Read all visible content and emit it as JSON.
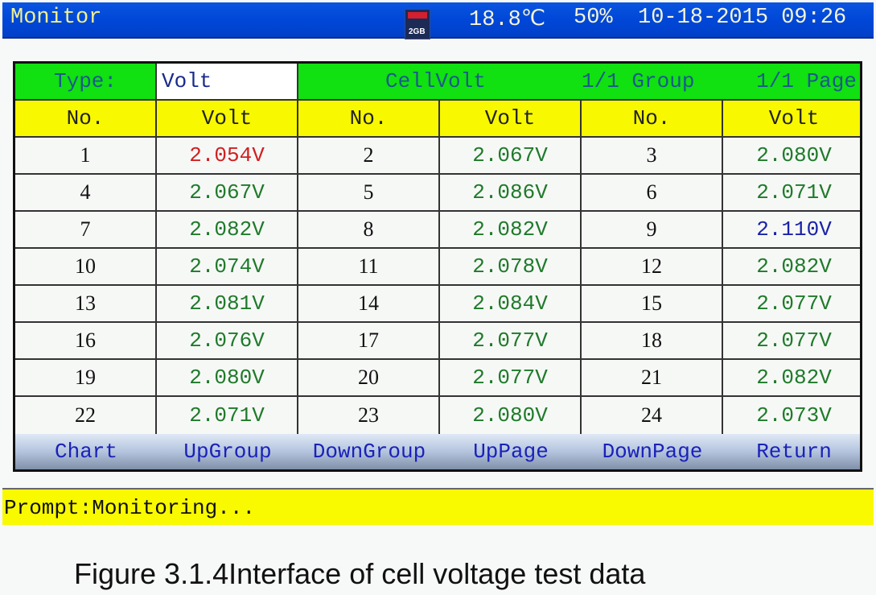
{
  "topbar": {
    "title": "Monitor",
    "sd_card_capacity": "2GB",
    "temperature": "18.8℃",
    "humidity": "50%",
    "datetime": "10-18-2015 09:26"
  },
  "grid_header": {
    "type_label": "Type:",
    "type_value": "Volt",
    "mode": "CellVolt",
    "group": "1/1 Group",
    "page": "1/1  Page"
  },
  "columns": [
    "No.",
    "Volt",
    "No.",
    "Volt",
    "No.",
    "Volt"
  ],
  "colors": {
    "normal": "#1f7a2a",
    "low": "#d02020",
    "high": "#1a22a8",
    "header_green": "#11e011",
    "header_yellow": "#f8f800",
    "topbar_blue": "#0047d8"
  },
  "rows": [
    [
      {
        "no": "1",
        "volt": "2.054V",
        "state": "low"
      },
      {
        "no": "2",
        "volt": "2.067V",
        "state": "normal"
      },
      {
        "no": "3",
        "volt": "2.080V",
        "state": "normal"
      }
    ],
    [
      {
        "no": "4",
        "volt": "2.067V",
        "state": "normal"
      },
      {
        "no": "5",
        "volt": "2.086V",
        "state": "normal"
      },
      {
        "no": "6",
        "volt": "2.071V",
        "state": "normal"
      }
    ],
    [
      {
        "no": "7",
        "volt": "2.082V",
        "state": "normal"
      },
      {
        "no": "8",
        "volt": "2.082V",
        "state": "normal"
      },
      {
        "no": "9",
        "volt": "2.110V",
        "state": "high"
      }
    ],
    [
      {
        "no": "10",
        "volt": "2.074V",
        "state": "normal"
      },
      {
        "no": "11",
        "volt": "2.078V",
        "state": "normal"
      },
      {
        "no": "12",
        "volt": "2.082V",
        "state": "normal"
      }
    ],
    [
      {
        "no": "13",
        "volt": "2.081V",
        "state": "normal"
      },
      {
        "no": "14",
        "volt": "2.084V",
        "state": "normal"
      },
      {
        "no": "15",
        "volt": "2.077V",
        "state": "normal"
      }
    ],
    [
      {
        "no": "16",
        "volt": "2.076V",
        "state": "normal"
      },
      {
        "no": "17",
        "volt": "2.077V",
        "state": "normal"
      },
      {
        "no": "18",
        "volt": "2.077V",
        "state": "normal"
      }
    ],
    [
      {
        "no": "19",
        "volt": "2.080V",
        "state": "normal"
      },
      {
        "no": "20",
        "volt": "2.077V",
        "state": "normal"
      },
      {
        "no": "21",
        "volt": "2.082V",
        "state": "normal"
      }
    ],
    [
      {
        "no": "22",
        "volt": "2.071V",
        "state": "normal"
      },
      {
        "no": "23",
        "volt": "2.080V",
        "state": "normal"
      },
      {
        "no": "24",
        "volt": "2.073V",
        "state": "normal"
      }
    ]
  ],
  "buttons": [
    "Chart",
    "UpGroup",
    "DownGroup",
    "UpPage",
    "DownPage",
    "Return"
  ],
  "prompt": "Prompt:Monitoring...",
  "caption": "Figure 3.1.4Interface of cell voltage test data"
}
